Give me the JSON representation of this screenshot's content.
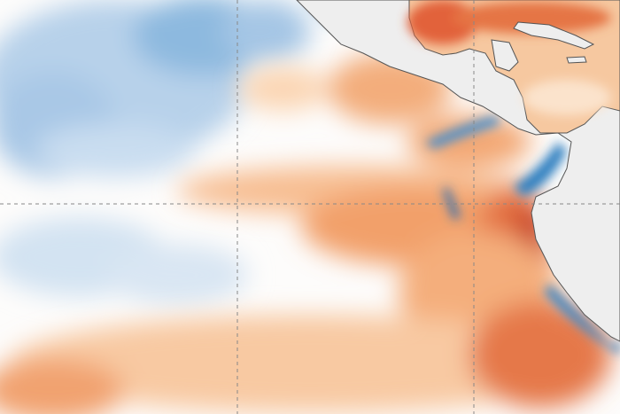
{
  "map": {
    "type": "sea-surface-temperature-anomaly",
    "colors": {
      "ocean_neutral": "#ffffff",
      "cool_light": "#c9ddf0",
      "cool": "#8db9df",
      "cool_strong": "#2f7fc0",
      "warm_light": "#fbd6b4",
      "warm": "#f2a06a",
      "warm_strong": "#d9542b",
      "warm_extreme": "#b8301e",
      "land": "#eeeeee",
      "coastline": "#555555",
      "graticule": "#888888"
    },
    "graticule": "dashed"
  }
}
